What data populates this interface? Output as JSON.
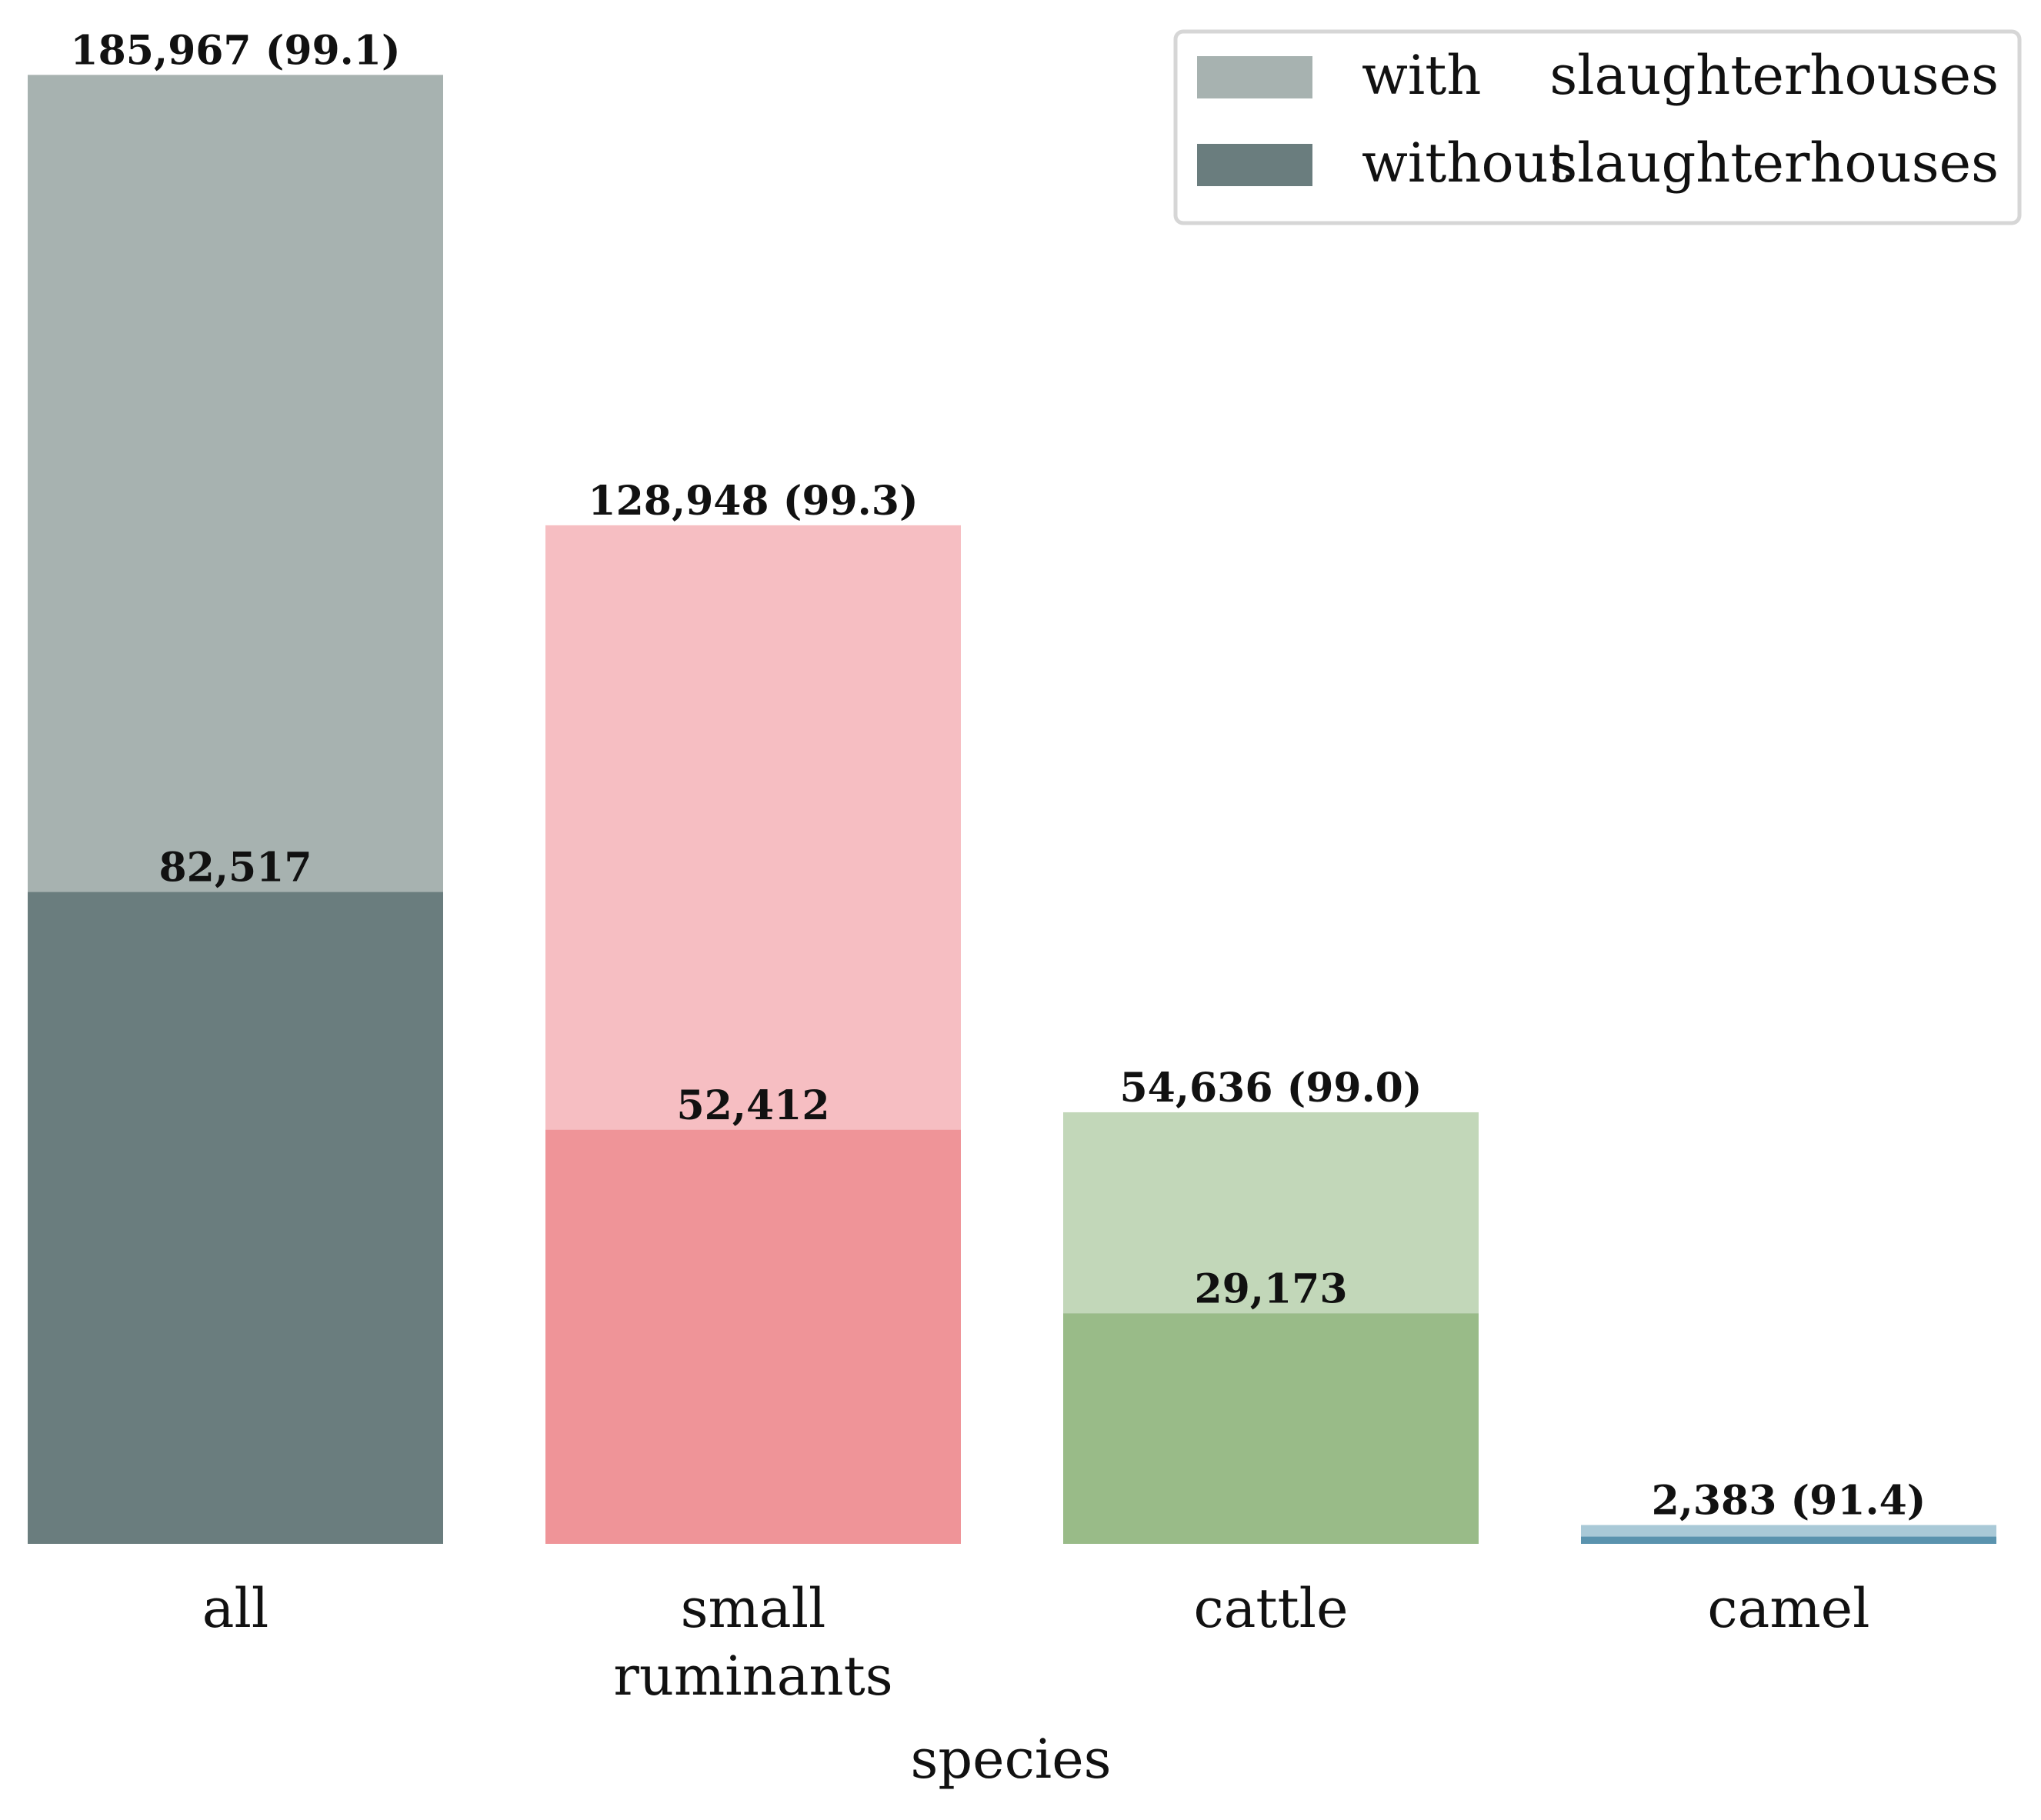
{
  "chart_data": {
    "type": "bar",
    "stacking": "overlaid",
    "xlabel": "species",
    "ylabel": "",
    "ylim": [
      0,
      186000
    ],
    "grid": false,
    "legend_position": "top-right",
    "categories": [
      {
        "label_lines": [
          "all"
        ],
        "with": 185967,
        "without": 82517,
        "with_label": "185,967 (99.1)",
        "without_label": "82,517",
        "color_with": "#a7b2b0",
        "color_without": "#6a7d7e"
      },
      {
        "label_lines": [
          "small",
          "ruminants"
        ],
        "with": 128948,
        "without": 52412,
        "with_label": "128,948 (99.3)",
        "without_label": "52,412",
        "color_with": "#f6bec2",
        "color_without": "#ef9498"
      },
      {
        "label_lines": [
          "cattle"
        ],
        "with": 54636,
        "without": 29173,
        "with_label": "54,636 (99.0)",
        "without_label": "29,173",
        "color_with": "#c2d7b9",
        "color_without": "#99bb88"
      },
      {
        "label_lines": [
          "camel"
        ],
        "with": 2383,
        "without": 913,
        "with_label": "2,383 (91.4)",
        "without_label": "",
        "color_with": "#a9c9d7",
        "color_without": "#5a93ae"
      }
    ],
    "series": [
      {
        "name": "with slaughterhouses",
        "key": "with",
        "legend_words": [
          "with",
          "slaughterhouses"
        ],
        "legend_color": "#a7b2b0"
      },
      {
        "name": "without slaughterhouses",
        "key": "without",
        "legend_words": [
          "without",
          "slaughterhouses"
        ],
        "legend_color": "#6a7d7e"
      }
    ]
  }
}
